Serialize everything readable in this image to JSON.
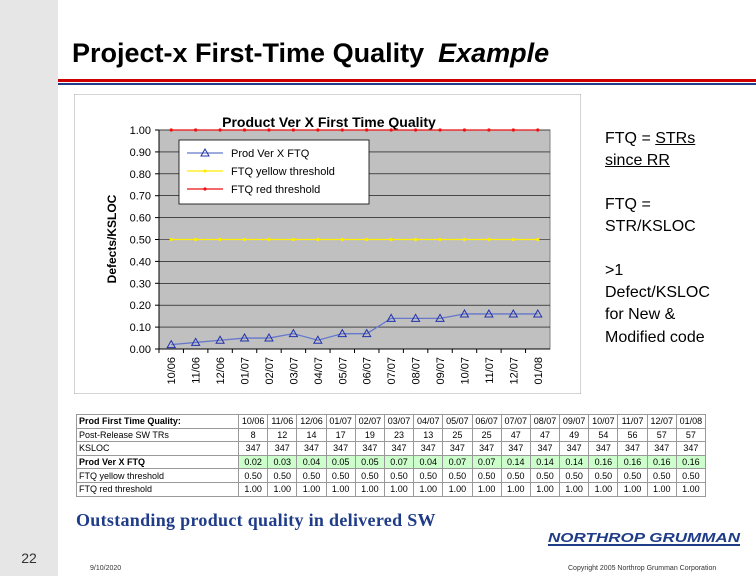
{
  "slide": {
    "title": "Project-x First-Time Quality",
    "title_emphasis": "Example",
    "page_number": "22",
    "footer_date": "9/10/2020",
    "copyright": "Copyright 2005 Northrop Grumman Corporation",
    "tagline": "Outstanding product quality in delivered SW",
    "logo_text": "NORTHROP GRUMMAN"
  },
  "notes": {
    "n1_a": "FTQ = ",
    "n1_b": "STRs",
    "n1_c": "since RR",
    "n2_a": "FTQ =",
    "n2_b": "STR/KSLOC",
    "n3_a": ">1",
    "n3_b": "Defect/KSLOC",
    "n3_c": "for New &",
    "n3_d": "Modified code"
  },
  "chart_data": {
    "type": "line",
    "title": "Product Ver X First Time Quality",
    "xlabel": "",
    "ylabel": "Defects/KSLOC",
    "ylim": [
      0,
      1
    ],
    "yticks": [
      "0.00",
      "0.10",
      "0.20",
      "0.30",
      "0.40",
      "0.50",
      "0.60",
      "0.70",
      "0.80",
      "0.90",
      "1.00"
    ],
    "categories": [
      "10/06",
      "11/06",
      "12/06",
      "01/07",
      "02/07",
      "03/07",
      "04/07",
      "05/07",
      "06/07",
      "07/07",
      "08/07",
      "09/07",
      "10/07",
      "11/07",
      "12/07",
      "01/08"
    ],
    "grid": true,
    "legend_position": "top-left",
    "plot_bg": "#c0c0c0",
    "series": [
      {
        "name": "Prod Ver X FTQ",
        "color": "#6677cc",
        "marker": "triangle",
        "values": [
          0.02,
          0.03,
          0.04,
          0.05,
          0.05,
          0.07,
          0.04,
          0.07,
          0.07,
          0.14,
          0.14,
          0.14,
          0.16,
          0.16,
          0.16,
          0.16
        ]
      },
      {
        "name": "FTQ yellow threshold",
        "color": "#ffee00",
        "marker": "dot",
        "values": [
          0.5,
          0.5,
          0.5,
          0.5,
          0.5,
          0.5,
          0.5,
          0.5,
          0.5,
          0.5,
          0.5,
          0.5,
          0.5,
          0.5,
          0.5,
          0.5
        ]
      },
      {
        "name": "FTQ red threshold",
        "color": "#ee1111",
        "marker": "dot",
        "values": [
          1.0,
          1.0,
          1.0,
          1.0,
          1.0,
          1.0,
          1.0,
          1.0,
          1.0,
          1.0,
          1.0,
          1.0,
          1.0,
          1.0,
          1.0,
          1.0
        ]
      }
    ]
  },
  "table": {
    "rows": [
      {
        "label": "Prod First Time Quality:",
        "cells": [
          "10/06",
          "11/06",
          "12/06",
          "01/07",
          "02/07",
          "03/07",
          "04/07",
          "05/07",
          "06/07",
          "07/07",
          "08/07",
          "09/07",
          "10/07",
          "11/07",
          "12/07",
          "01/08"
        ],
        "highlight": false
      },
      {
        "label": "Post-Release SW TRs",
        "cells": [
          "8",
          "12",
          "14",
          "17",
          "19",
          "23",
          "13",
          "25",
          "25",
          "47",
          "47",
          "49",
          "54",
          "56",
          "57",
          "57"
        ],
        "highlight": false
      },
      {
        "label": "KSLOC",
        "cells": [
          "347",
          "347",
          "347",
          "347",
          "347",
          "347",
          "347",
          "347",
          "347",
          "347",
          "347",
          "347",
          "347",
          "347",
          "347",
          "347"
        ],
        "highlight": false
      },
      {
        "label": "Prod Ver X FTQ",
        "cells": [
          "0.02",
          "0.03",
          "0.04",
          "0.05",
          "0.05",
          "0.07",
          "0.04",
          "0.07",
          "0.07",
          "0.14",
          "0.14",
          "0.14",
          "0.16",
          "0.16",
          "0.16",
          "0.16"
        ],
        "highlight": true
      },
      {
        "label": "FTQ yellow threshold",
        "cells": [
          "0.50",
          "0.50",
          "0.50",
          "0.50",
          "0.50",
          "0.50",
          "0.50",
          "0.50",
          "0.50",
          "0.50",
          "0.50",
          "0.50",
          "0.50",
          "0.50",
          "0.50",
          "0.50"
        ],
        "highlight": false
      },
      {
        "label": "FTQ red threshold",
        "cells": [
          "1.00",
          "1.00",
          "1.00",
          "1.00",
          "1.00",
          "1.00",
          "1.00",
          "1.00",
          "1.00",
          "1.00",
          "1.00",
          "1.00",
          "1.00",
          "1.00",
          "1.00",
          "1.00"
        ],
        "highlight": false
      }
    ]
  }
}
